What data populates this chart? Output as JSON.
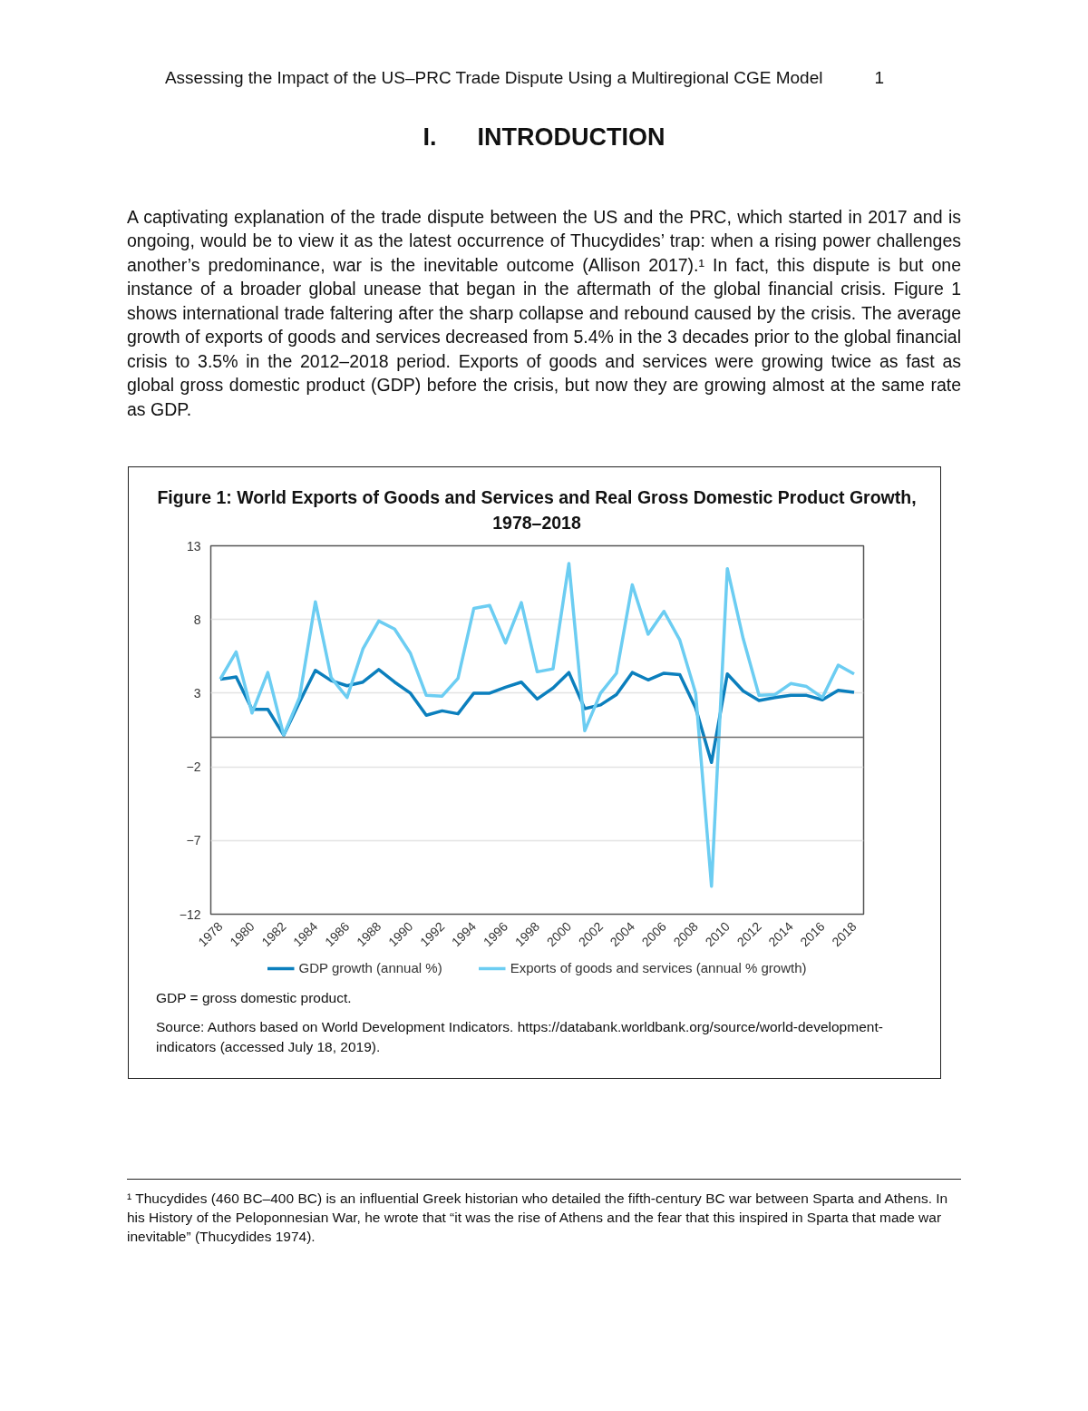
{
  "chart_data": {
    "type": "line",
    "title": "Figure 1: World Exports of Goods and Services and Real Gross Domestic Product Growth, 1978–2018",
    "x": [
      1978,
      1979,
      1980,
      1981,
      1982,
      1983,
      1984,
      1985,
      1986,
      1987,
      1988,
      1989,
      1990,
      1991,
      1992,
      1993,
      1994,
      1995,
      1996,
      1997,
      1998,
      1999,
      2000,
      2001,
      2002,
      2003,
      2004,
      2005,
      2006,
      2007,
      2008,
      2009,
      2010,
      2011,
      2012,
      2013,
      2014,
      2015,
      2016,
      2017,
      2018
    ],
    "series": [
      {
        "name": "GDP growth (annual %)",
        "color": "#0b7fbd",
        "values": [
          3.95,
          4.1,
          1.9,
          1.9,
          0.15,
          2.4,
          4.55,
          3.85,
          3.5,
          3.75,
          4.6,
          3.75,
          3.0,
          1.5,
          1.8,
          1.6,
          3.0,
          3.0,
          3.4,
          3.75,
          2.6,
          3.35,
          4.4,
          1.95,
          2.2,
          2.9,
          4.4,
          3.9,
          4.35,
          4.25,
          2.0,
          -1.7,
          4.3,
          3.15,
          2.5,
          2.7,
          2.85,
          2.85,
          2.55,
          3.2,
          3.05
        ]
      },
      {
        "name": "Exports of goods and services (annual % growth)",
        "color": "#6ccdf2",
        "values": [
          3.95,
          5.8,
          1.65,
          4.4,
          0.15,
          2.7,
          9.2,
          4.05,
          2.7,
          6.0,
          7.9,
          7.35,
          5.7,
          2.85,
          2.8,
          4.0,
          8.75,
          8.95,
          6.4,
          9.15,
          4.45,
          4.65,
          11.8,
          0.45,
          3.0,
          4.35,
          10.35,
          7.0,
          8.55,
          6.6,
          3.0,
          -10.1,
          11.45,
          6.7,
          2.85,
          2.9,
          3.65,
          3.45,
          2.7,
          4.9,
          4.3
        ]
      }
    ],
    "xlim": [
      1977.4,
      2018.6
    ],
    "xticks": [
      1978,
      1980,
      1982,
      1984,
      1986,
      1988,
      1990,
      1992,
      1994,
      1996,
      1998,
      2000,
      2002,
      2004,
      2006,
      2008,
      2010,
      2012,
      2014,
      2016,
      2018
    ],
    "ylim": [
      -12,
      13
    ],
    "yticks": [
      {
        "value": -12,
        "label": "−12"
      },
      {
        "value": -7,
        "label": "−7"
      },
      {
        "value": -2,
        "label": "−2"
      },
      3,
      8,
      13
    ],
    "ref_lines": [
      {
        "axis": "y",
        "value": 0,
        "label": null,
        "color": "#6e6e6e"
      }
    ],
    "grid": "y",
    "legend": "bottom",
    "marker": "none",
    "line_style": "solid",
    "annotations": [
      "Assessing the Impact of the US–PRC Trade Dispute Using a Multiregional CGE Model",
      "1",
      "I.      INTRODUCTION",
      "A captivating explanation of the trade dispute between the US and the PRC, which started in 2017 and is ongoing, would be to view it as the latest occurrence of Thucydides’ trap: when a rising power challenges another’s predominance, war is the inevitable outcome (Allison 2017).¹ In fact, this dispute is but one instance of a broader global unease that began in the aftermath of the global financial crisis. Figure 1 shows international trade faltering after the sharp collapse and rebound caused by the crisis. The average growth of exports of goods and services decreased from 5.4% in the 3 decades prior to the global financial crisis to 3.5% in the 2012–2018 period. Exports of goods and services were growing twice as fast as global gross domestic product (GDP) before the crisis, but now they are growing almost at the same rate as GDP.",
      "GDP = gross domestic product.",
      "Source: Authors based on World Development Indicators. https://databank.worldbank.org/source/world-development-indicators (accessed July 18, 2019).",
      "¹      Thucydides (460 BC–400 BC) is an influential Greek historian who detailed the fifth-century BC war between Sparta and Athens. In his History of the Peloponnesian War, he wrote that “it was the rise of Athens and the fear that this inspired in Sparta that made war inevitable” (Thucydides 1974)."
    ]
  }
}
